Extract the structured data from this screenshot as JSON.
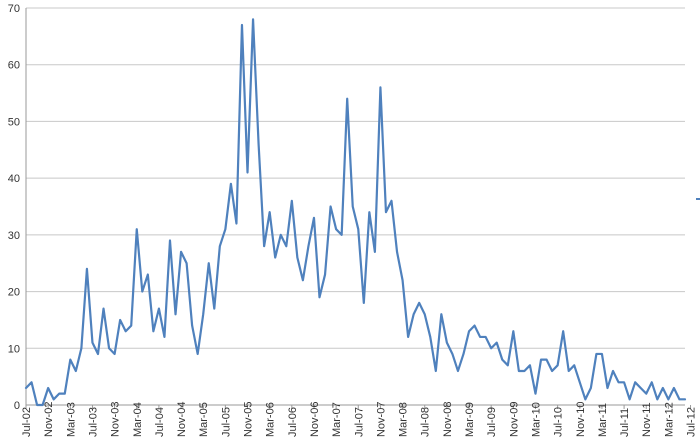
{
  "chart_data": {
    "type": "line",
    "title": "",
    "xlabel": "",
    "ylabel": "",
    "ylim": [
      0,
      70
    ],
    "y_ticks": [
      0,
      10,
      20,
      30,
      40,
      50,
      60,
      70
    ],
    "grid": true,
    "x_tick_labels": [
      "Jul-02",
      "Nov-02",
      "Mar-03",
      "Jul-03",
      "Nov-03",
      "Mar-04",
      "Jul-04",
      "Nov-04",
      "Mar-05",
      "Jul-05",
      "Nov-05",
      "Mar-06",
      "Jul-06",
      "Nov-06",
      "Mar-07",
      "Jul-07",
      "Nov-07",
      "Mar-08",
      "Jul-08",
      "Nov-08",
      "Mar-09",
      "Jul-09",
      "Nov-09",
      "Mar-10",
      "Jul-10",
      "Nov-10",
      "Mar-11",
      "Jul-11",
      "Nov-11",
      "Mar-12",
      "Jul-12"
    ],
    "series": [
      {
        "name": "",
        "color": "#4f81bd",
        "values": [
          3,
          4,
          0,
          0,
          3,
          1,
          2,
          2,
          8,
          6,
          10,
          24,
          11,
          9,
          17,
          10,
          9,
          15,
          13,
          14,
          31,
          20,
          23,
          13,
          17,
          12,
          29,
          16,
          27,
          25,
          14,
          9,
          16,
          25,
          17,
          28,
          31,
          39,
          32,
          67,
          41,
          68,
          46,
          28,
          34,
          26,
          30,
          28,
          36,
          26,
          22,
          28,
          33,
          19,
          23,
          35,
          31,
          30,
          54,
          35,
          31,
          18,
          34,
          27,
          56,
          34,
          36,
          27,
          22,
          12,
          16,
          18,
          16,
          12,
          6,
          16,
          11,
          9,
          6,
          9,
          13,
          14,
          12,
          12,
          10,
          11,
          8,
          7,
          13,
          6,
          6,
          7,
          2,
          8,
          8,
          6,
          7,
          13,
          6,
          7,
          4,
          1,
          3,
          9,
          9,
          3,
          6,
          4,
          4,
          1,
          4,
          3,
          2,
          4,
          1,
          3,
          1,
          3,
          1,
          1
        ]
      }
    ]
  }
}
